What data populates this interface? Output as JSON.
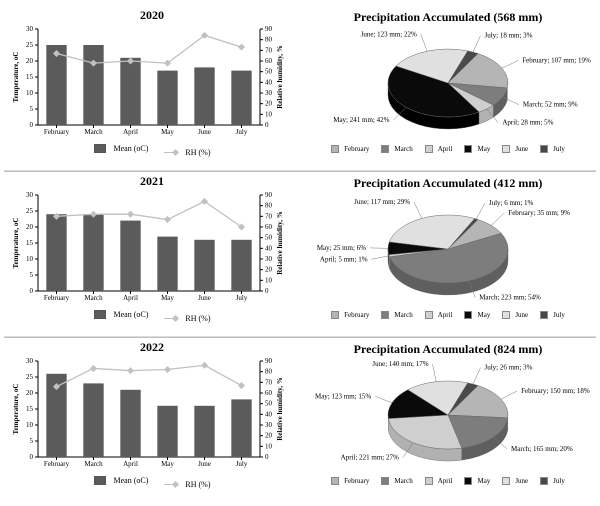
{
  "font_family": "Times New Roman",
  "page_bg": "#ffffff",
  "rows": [
    {
      "year_title": "2020",
      "bar": {
        "type": "bar+line",
        "categories": [
          "February",
          "March",
          "April",
          "May",
          "June",
          "July"
        ],
        "temp_values": [
          25,
          25,
          21,
          17,
          18,
          17
        ],
        "rh_values": [
          67,
          58,
          60,
          58,
          84,
          73
        ],
        "temp_ylim": [
          0,
          30
        ],
        "temp_tick_step": 5,
        "rh_ylim": [
          0,
          90
        ],
        "rh_tick_step": 10,
        "y1_label": "Temperature, oC",
        "y2_label": "Relative humidity, %",
        "bar_color": "#5b5b5b",
        "line_color": "#c1c1c1",
        "marker_color": "#c1c1c1",
        "axis_color": "#000000",
        "grid": false,
        "bar_width": 0.55,
        "legend_items": [
          {
            "label": "Mean (oC)",
            "type": "bar"
          },
          {
            "label": "RH (%)",
            "type": "line"
          }
        ]
      },
      "pie": {
        "title": "Precipitation Accumulated (568 mm)",
        "type": "pie3d",
        "slices": [
          {
            "label": "February",
            "mm": 107,
            "pct": 19,
            "color": "#b5b5b5"
          },
          {
            "label": "March",
            "mm": 52,
            "pct": 9,
            "color": "#7d7d7d"
          },
          {
            "label": "April",
            "mm": 28,
            "pct": 5,
            "color": "#cfcfcf"
          },
          {
            "label": "May",
            "mm": 241,
            "pct": 42,
            "color": "#0a0a0a"
          },
          {
            "label": "June",
            "mm": 123,
            "pct": 22,
            "color": "#e0e0e0"
          },
          {
            "label": "July",
            "mm": 18,
            "pct": 3,
            "color": "#4a4a4a"
          }
        ],
        "outline": "#666666",
        "start_angle_deg": -60
      }
    },
    {
      "year_title": "2021",
      "bar": {
        "type": "bar+line",
        "categories": [
          "February",
          "March",
          "April",
          "May",
          "June",
          "July"
        ],
        "temp_values": [
          24,
          24,
          22,
          17,
          16,
          16
        ],
        "rh_values": [
          70,
          72,
          72,
          67,
          84,
          60
        ],
        "temp_ylim": [
          0,
          30
        ],
        "temp_tick_step": 5,
        "rh_ylim": [
          0,
          90
        ],
        "rh_tick_step": 10,
        "y1_label": "Temperature, oC",
        "y2_label": "Relative humidity, %",
        "bar_color": "#5b5b5b",
        "line_color": "#c1c1c1",
        "marker_color": "#c1c1c1",
        "axis_color": "#000000",
        "grid": false,
        "bar_width": 0.55,
        "legend_items": [
          {
            "label": "Mean (oC)",
            "type": "bar"
          },
          {
            "label": "RH (%)",
            "type": "line"
          }
        ]
      },
      "pie": {
        "title": "Precipitation Accumulated (412 mm)",
        "type": "pie3d",
        "slices": [
          {
            "label": "February",
            "mm": 35,
            "pct": 9,
            "color": "#b5b5b5"
          },
          {
            "label": "March",
            "mm": 223,
            "pct": 54,
            "color": "#7d7d7d"
          },
          {
            "label": "April",
            "mm": 5,
            "pct": 1,
            "color": "#cfcfcf"
          },
          {
            "label": "May",
            "mm": 25,
            "pct": 6,
            "color": "#0a0a0a"
          },
          {
            "label": "June",
            "mm": 117,
            "pct": 29,
            "color": "#e0e0e0"
          },
          {
            "label": "July",
            "mm": 6,
            "pct": 1,
            "color": "#4a4a4a"
          }
        ],
        "outline": "#666666",
        "start_angle_deg": -60
      }
    },
    {
      "year_title": "2022",
      "bar": {
        "type": "bar+line",
        "categories": [
          "February",
          "March",
          "April",
          "May",
          "June",
          "July"
        ],
        "temp_values": [
          26,
          23,
          21,
          16,
          16,
          18
        ],
        "rh_values": [
          66,
          83,
          81,
          82,
          86,
          67
        ],
        "temp_ylim": [
          0,
          30
        ],
        "temp_tick_step": 5,
        "rh_ylim": [
          0,
          90
        ],
        "rh_tick_step": 10,
        "y1_label": "Temperature, oC",
        "y2_label": "Relative humidity, %",
        "bar_color": "#5b5b5b",
        "line_color": "#c1c1c1",
        "marker_color": "#c1c1c1",
        "axis_color": "#000000",
        "grid": false,
        "bar_width": 0.55,
        "legend_items": [
          {
            "label": "Mean (oC)",
            "type": "bar"
          },
          {
            "label": "RH (%)",
            "type": "line"
          }
        ]
      },
      "pie": {
        "title": "Precipitation Accumulated (824 mm)",
        "type": "pie3d",
        "slices": [
          {
            "label": "February",
            "mm": 150,
            "pct": 18,
            "color": "#b5b5b5"
          },
          {
            "label": "March",
            "mm": 165,
            "pct": 20,
            "color": "#7d7d7d"
          },
          {
            "label": "April",
            "mm": 221,
            "pct": 27,
            "color": "#cfcfcf"
          },
          {
            "label": "May",
            "mm": 123,
            "pct": 15,
            "color": "#0a0a0a"
          },
          {
            "label": "June",
            "mm": 140,
            "pct": 17,
            "color": "#e0e0e0"
          },
          {
            "label": "July",
            "mm": 26,
            "pct": 3,
            "color": "#4a4a4a"
          }
        ],
        "outline": "#666666",
        "start_angle_deg": -60
      }
    }
  ]
}
